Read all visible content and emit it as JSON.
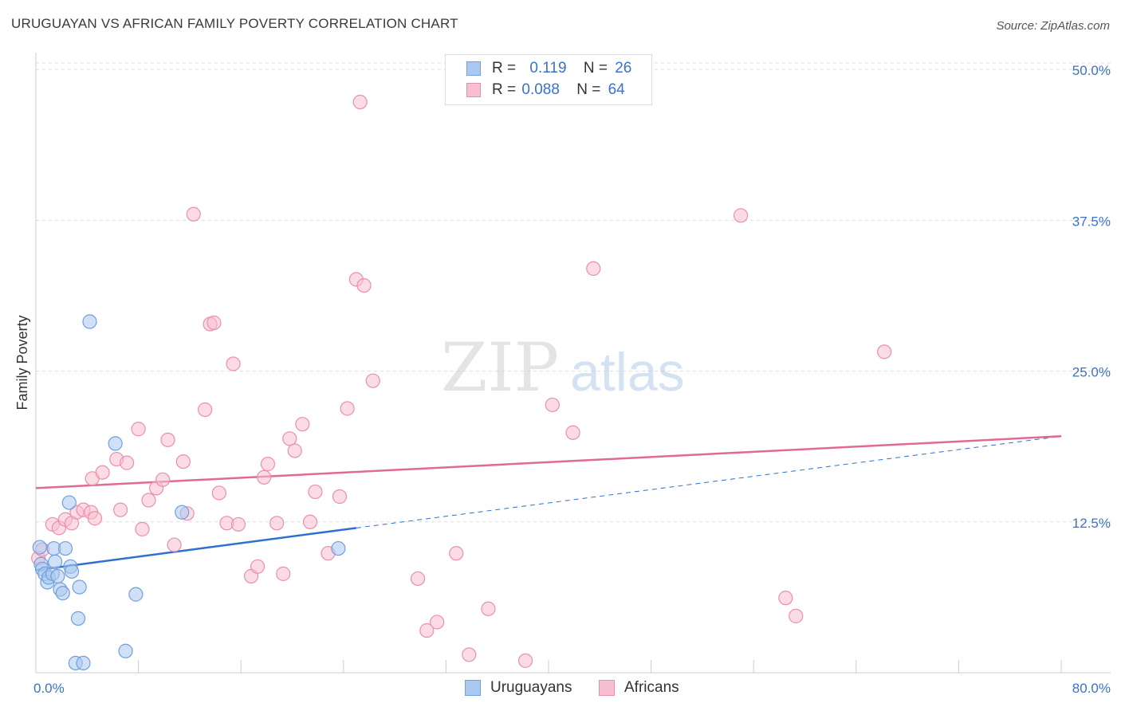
{
  "title": "URUGUAYAN VS AFRICAN FAMILY POVERTY CORRELATION CHART",
  "source": "Source: ZipAtlas.com",
  "watermark": {
    "zip": "ZIP",
    "atlas": "atlas"
  },
  "legend": {
    "rows": [
      {
        "r_label": "R =",
        "r_value": "0.119",
        "n_label": "N =",
        "n_value": "26"
      },
      {
        "r_label": "R =",
        "r_value": "0.088",
        "n_label": "N =",
        "n_value": "64"
      }
    ]
  },
  "bottom_legend": {
    "uruguayans": "Uruguayans",
    "africans": "Africans"
  },
  "colors": {
    "uruguayan_fill": "#aac8f0",
    "uruguayan_stroke": "#6f9fdc",
    "uruguayan_line": "#2f6fcf",
    "african_fill": "#f7bfd0",
    "african_stroke": "#ea8fab",
    "african_line": "#e06a93",
    "axis_label": "#3a72c8",
    "grid": "#dddddd"
  },
  "chart_data": {
    "type": "scatter",
    "title": "URUGUAYAN VS AFRICAN FAMILY POVERTY CORRELATION CHART",
    "xlabel": "",
    "ylabel": "Family Poverty",
    "xlim": [
      0,
      80
    ],
    "ylim": [
      0,
      51
    ],
    "x_tick_labels": [
      "0.0%",
      "80.0%"
    ],
    "y_ticks": [
      12.5,
      25.0,
      37.5,
      50.0
    ],
    "y_tick_labels": [
      "12.5%",
      "25.0%",
      "37.5%",
      "50.0%"
    ],
    "grid": true,
    "series": [
      {
        "name": "Uruguayans",
        "points": [
          [
            0.3,
            10.4
          ],
          [
            0.4,
            9.0
          ],
          [
            0.5,
            8.6
          ],
          [
            0.7,
            8.2
          ],
          [
            0.9,
            7.5
          ],
          [
            1.0,
            7.9
          ],
          [
            1.3,
            8.2
          ],
          [
            1.4,
            10.3
          ],
          [
            1.5,
            9.2
          ],
          [
            1.7,
            8.0
          ],
          [
            1.9,
            6.9
          ],
          [
            2.1,
            6.6
          ],
          [
            2.3,
            10.3
          ],
          [
            2.6,
            14.1
          ],
          [
            2.7,
            8.8
          ],
          [
            2.8,
            8.4
          ],
          [
            3.1,
            0.8
          ],
          [
            3.3,
            4.5
          ],
          [
            3.4,
            7.1
          ],
          [
            3.7,
            0.8
          ],
          [
            4.2,
            29.1
          ],
          [
            6.2,
            19.0
          ],
          [
            7.0,
            1.8
          ],
          [
            7.8,
            6.5
          ],
          [
            11.4,
            13.3
          ],
          [
            23.6,
            10.3
          ]
        ],
        "trend": {
          "x0": 0,
          "y0": 8.5,
          "x1": 25,
          "y1": 12.0,
          "dashed_to_x": 80,
          "dashed_to_y": 19.6
        }
      },
      {
        "name": "Africans",
        "points": [
          [
            0.2,
            9.5
          ],
          [
            0.5,
            10.2
          ],
          [
            1.3,
            12.3
          ],
          [
            1.8,
            12.0
          ],
          [
            2.3,
            12.7
          ],
          [
            2.8,
            12.4
          ],
          [
            3.2,
            13.3
          ],
          [
            3.7,
            13.5
          ],
          [
            4.3,
            13.3
          ],
          [
            4.4,
            16.1
          ],
          [
            4.6,
            12.8
          ],
          [
            5.2,
            16.6
          ],
          [
            6.3,
            17.7
          ],
          [
            6.6,
            13.5
          ],
          [
            7.1,
            17.4
          ],
          [
            8.0,
            20.2
          ],
          [
            8.3,
            11.9
          ],
          [
            8.8,
            14.3
          ],
          [
            9.4,
            15.3
          ],
          [
            9.9,
            16.0
          ],
          [
            10.3,
            19.3
          ],
          [
            10.8,
            10.6
          ],
          [
            11.5,
            17.5
          ],
          [
            11.8,
            13.2
          ],
          [
            12.3,
            38.0
          ],
          [
            13.2,
            21.8
          ],
          [
            13.6,
            28.9
          ],
          [
            13.9,
            29.0
          ],
          [
            14.3,
            14.9
          ],
          [
            14.9,
            12.4
          ],
          [
            15.4,
            25.6
          ],
          [
            15.8,
            12.3
          ],
          [
            16.8,
            8.0
          ],
          [
            17.3,
            8.8
          ],
          [
            17.8,
            16.2
          ],
          [
            18.1,
            17.3
          ],
          [
            18.8,
            12.4
          ],
          [
            19.3,
            8.2
          ],
          [
            19.8,
            19.4
          ],
          [
            20.2,
            18.4
          ],
          [
            20.8,
            20.6
          ],
          [
            21.4,
            12.5
          ],
          [
            21.8,
            15.0
          ],
          [
            22.8,
            9.9
          ],
          [
            23.7,
            14.6
          ],
          [
            24.3,
            21.9
          ],
          [
            25.0,
            32.6
          ],
          [
            25.3,
            47.3
          ],
          [
            25.6,
            32.1
          ],
          [
            26.3,
            24.2
          ],
          [
            29.8,
            7.8
          ],
          [
            30.5,
            3.5
          ],
          [
            31.3,
            4.2
          ],
          [
            32.8,
            9.9
          ],
          [
            33.8,
            1.5
          ],
          [
            35.3,
            5.3
          ],
          [
            38.2,
            1.0
          ],
          [
            40.3,
            22.2
          ],
          [
            41.9,
            19.9
          ],
          [
            43.5,
            33.5
          ],
          [
            55.0,
            37.9
          ],
          [
            58.5,
            6.2
          ],
          [
            59.3,
            4.7
          ],
          [
            66.2,
            26.6
          ]
        ],
        "trend": {
          "x0": 0,
          "y0": 15.3,
          "x1": 80,
          "y1": 19.6
        }
      }
    ]
  }
}
